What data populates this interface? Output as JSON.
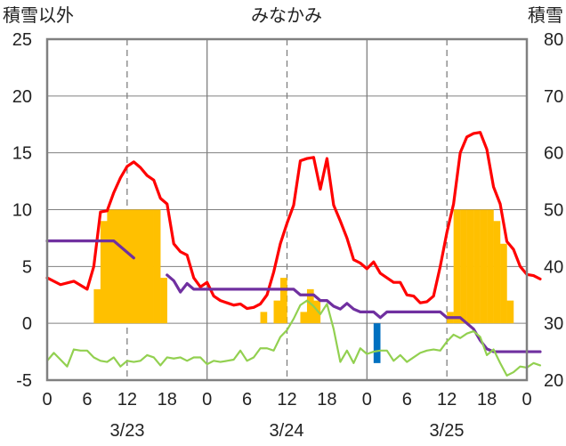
{
  "chart_data": {
    "type": "combo",
    "title": "みなかみ",
    "left_axis_label": "積雪以外",
    "right_axis_label": "積雪",
    "left_ylim": [
      -5,
      25
    ],
    "left_ticks": [
      "25",
      "20",
      "15",
      "10",
      "5",
      "0",
      "-5"
    ],
    "right_ylim": [
      20,
      80
    ],
    "right_ticks": [
      "80",
      "70",
      "60",
      "50",
      "40",
      "30",
      "20"
    ],
    "x_hour_ticks": [
      "0",
      "6",
      "12",
      "18",
      "0",
      "6",
      "12",
      "18",
      "0",
      "6",
      "12",
      "18",
      "0"
    ],
    "dates": [
      "3/23",
      "3/24",
      "3/25"
    ],
    "colors": {
      "temperature": "#ff0000",
      "snow_depth": "#7030a0",
      "sunshine": "#ffc000",
      "precipitation": "#0070c0",
      "wind": "#92d050",
      "frame": "#808080",
      "grid": "#808080"
    },
    "series": [
      {
        "key": "temperature",
        "axis": "left",
        "style": "line",
        "points": [
          [
            0,
            4.0
          ],
          [
            2,
            3.4
          ],
          [
            4,
            3.7
          ],
          [
            6,
            3.0
          ],
          [
            7,
            5.0
          ],
          [
            8,
            9.8
          ],
          [
            9,
            9.9
          ],
          [
            10,
            11.5
          ],
          [
            11,
            12.8
          ],
          [
            12,
            13.8
          ],
          [
            13,
            14.2
          ],
          [
            14,
            13.7
          ],
          [
            15,
            13.0
          ],
          [
            16,
            12.6
          ],
          [
            17,
            11.0
          ],
          [
            18,
            10.5
          ],
          [
            19,
            7.0
          ],
          [
            20,
            6.3
          ],
          [
            21,
            6.0
          ],
          [
            22,
            4.0
          ],
          [
            23,
            3.2
          ],
          [
            24,
            3.6
          ],
          [
            25,
            2.4
          ],
          [
            26,
            2.0
          ],
          [
            27,
            1.8
          ],
          [
            28,
            1.6
          ],
          [
            29,
            1.7
          ],
          [
            30,
            1.3
          ],
          [
            31,
            1.4
          ],
          [
            32,
            1.7
          ],
          [
            33,
            2.5
          ],
          [
            34,
            4.5
          ],
          [
            35,
            7.0
          ],
          [
            36,
            8.8
          ],
          [
            37,
            10.4
          ],
          [
            38,
            14.3
          ],
          [
            39,
            14.5
          ],
          [
            40,
            14.6
          ],
          [
            41,
            11.8
          ],
          [
            42,
            14.5
          ],
          [
            43,
            10.4
          ],
          [
            44,
            9.0
          ],
          [
            45,
            7.5
          ],
          [
            46,
            5.6
          ],
          [
            47,
            5.3
          ],
          [
            48,
            4.8
          ],
          [
            49,
            5.4
          ],
          [
            50,
            4.4
          ],
          [
            51,
            4.0
          ],
          [
            52,
            3.6
          ],
          [
            53,
            3.6
          ],
          [
            54,
            2.5
          ],
          [
            55,
            2.4
          ],
          [
            56,
            1.8
          ],
          [
            57,
            1.9
          ],
          [
            58,
            2.4
          ],
          [
            59,
            5.0
          ],
          [
            60,
            8.0
          ],
          [
            61,
            10.5
          ],
          [
            62,
            15.0
          ],
          [
            63,
            16.4
          ],
          [
            64,
            16.7
          ],
          [
            65,
            16.8
          ],
          [
            66,
            15.3
          ],
          [
            67,
            12.0
          ],
          [
            68,
            10.5
          ],
          [
            69,
            7.2
          ],
          [
            70,
            6.5
          ],
          [
            71,
            5.0
          ],
          [
            72,
            4.3
          ],
          [
            73,
            4.2
          ],
          [
            74,
            3.9
          ]
        ]
      },
      {
        "key": "snow_depth",
        "axis": "right",
        "style": "line",
        "segments": [
          [
            [
              0,
              44.5
            ],
            [
              1,
              44.5
            ],
            [
              2,
              44.5
            ],
            [
              3,
              44.5
            ],
            [
              4,
              44.5
            ],
            [
              5,
              44.5
            ],
            [
              6,
              44.5
            ],
            [
              7,
              44.5
            ],
            [
              8,
              44.5
            ],
            [
              9,
              44.5
            ],
            [
              10,
              44.5
            ],
            [
              11,
              43.5
            ],
            [
              12,
              42.5
            ],
            [
              13,
              41.5
            ]
          ],
          [
            [
              18,
              38.5
            ],
            [
              19,
              37.5
            ],
            [
              20,
              35.5
            ],
            [
              21,
              37.0
            ],
            [
              22,
              36.0
            ],
            [
              23,
              36.0
            ],
            [
              24,
              36.0
            ],
            [
              25,
              36.0
            ],
            [
              26,
              36.0
            ],
            [
              27,
              36.0
            ],
            [
              28,
              36.0
            ],
            [
              29,
              36.0
            ],
            [
              30,
              36.0
            ],
            [
              31,
              36.0
            ],
            [
              32,
              36.0
            ],
            [
              33,
              36.0
            ],
            [
              34,
              36.0
            ],
            [
              35,
              36.0
            ],
            [
              36,
              36.0
            ],
            [
              37,
              36.0
            ],
            [
              38,
              35.0
            ],
            [
              39,
              35.0
            ],
            [
              40,
              35.0
            ],
            [
              41,
              34.0
            ],
            [
              42,
              34.0
            ],
            [
              43,
              33.0
            ],
            [
              44,
              32.5
            ],
            [
              45,
              33.5
            ],
            [
              46,
              32.5
            ],
            [
              47,
              32.0
            ],
            [
              48,
              32.0
            ],
            [
              49,
              32.0
            ],
            [
              50,
              31.0
            ],
            [
              51,
              32.0
            ],
            [
              52,
              32.0
            ],
            [
              53,
              32.0
            ],
            [
              54,
              32.0
            ],
            [
              55,
              32.0
            ],
            [
              56,
              32.0
            ],
            [
              57,
              32.0
            ],
            [
              58,
              32.0
            ],
            [
              59,
              32.0
            ],
            [
              60,
              31.0
            ],
            [
              61,
              31.0
            ],
            [
              62,
              31.0
            ],
            [
              63,
              30.0
            ],
            [
              64,
              29.0
            ],
            [
              65,
              27.0
            ],
            [
              66,
              25.5
            ],
            [
              67,
              25.0
            ],
            [
              68,
              25.0
            ],
            [
              69,
              25.0
            ],
            [
              70,
              25.0
            ],
            [
              71,
              25.0
            ],
            [
              72,
              25.0
            ],
            [
              73,
              25.0
            ],
            [
              74,
              25.0
            ]
          ]
        ]
      },
      {
        "key": "wind",
        "axis": "left",
        "style": "line",
        "points": [
          [
            0,
            -3.3
          ],
          [
            1,
            -2.6
          ],
          [
            2,
            -3.2
          ],
          [
            3,
            -3.8
          ],
          [
            4,
            -2.3
          ],
          [
            5,
            -2.4
          ],
          [
            6,
            -2.4
          ],
          [
            7,
            -3.0
          ],
          [
            8,
            -3.3
          ],
          [
            9,
            -3.4
          ],
          [
            10,
            -3.0
          ],
          [
            11,
            -3.8
          ],
          [
            12,
            -3.3
          ],
          [
            13,
            -3.4
          ],
          [
            14,
            -3.3
          ],
          [
            15,
            -2.8
          ],
          [
            16,
            -3.0
          ],
          [
            17,
            -3.7
          ],
          [
            18,
            -3.0
          ],
          [
            19,
            -3.1
          ],
          [
            20,
            -3.0
          ],
          [
            21,
            -3.3
          ],
          [
            22,
            -3.0
          ],
          [
            23,
            -3.0
          ],
          [
            24,
            -3.6
          ],
          [
            25,
            -3.3
          ],
          [
            26,
            -3.4
          ],
          [
            27,
            -3.3
          ],
          [
            28,
            -3.2
          ],
          [
            29,
            -2.4
          ],
          [
            30,
            -3.3
          ],
          [
            31,
            -3.0
          ],
          [
            32,
            -2.2
          ],
          [
            33,
            -2.2
          ],
          [
            34,
            -2.4
          ],
          [
            35,
            -1.2
          ],
          [
            36,
            -0.6
          ],
          [
            37,
            0.4
          ],
          [
            38,
            1.6
          ],
          [
            39,
            2.0
          ],
          [
            40,
            1.5
          ],
          [
            41,
            0.8
          ],
          [
            42,
            1.7
          ],
          [
            43,
            -0.5
          ],
          [
            44,
            -3.4
          ],
          [
            45,
            -2.4
          ],
          [
            46,
            -3.5
          ],
          [
            47,
            -2.2
          ],
          [
            48,
            -2.7
          ],
          [
            49,
            -2.5
          ],
          [
            50,
            -2.4
          ],
          [
            51,
            -2.4
          ],
          [
            52,
            -3.3
          ],
          [
            53,
            -2.8
          ],
          [
            54,
            -3.4
          ],
          [
            55,
            -3.0
          ],
          [
            56,
            -2.6
          ],
          [
            57,
            -2.4
          ],
          [
            58,
            -2.3
          ],
          [
            59,
            -2.4
          ],
          [
            60,
            -1.6
          ],
          [
            61,
            -1.0
          ],
          [
            62,
            -1.3
          ],
          [
            63,
            -0.9
          ],
          [
            64,
            -0.7
          ],
          [
            65,
            -1.2
          ],
          [
            66,
            -2.8
          ],
          [
            67,
            -2.3
          ],
          [
            68,
            -3.5
          ],
          [
            69,
            -4.6
          ],
          [
            70,
            -4.3
          ],
          [
            71,
            -3.8
          ],
          [
            72,
            -3.9
          ],
          [
            73,
            -3.5
          ],
          [
            74,
            -3.7
          ]
        ]
      },
      {
        "key": "sunshine",
        "axis": "left",
        "style": "bar",
        "bars": [
          [
            7,
            3
          ],
          [
            8,
            9
          ],
          [
            9,
            10
          ],
          [
            10,
            10
          ],
          [
            11,
            10
          ],
          [
            12,
            10
          ],
          [
            13,
            10
          ],
          [
            14,
            10
          ],
          [
            15,
            10
          ],
          [
            16,
            10
          ],
          [
            17,
            4
          ],
          [
            32,
            1
          ],
          [
            34,
            2
          ],
          [
            35,
            4
          ],
          [
            38,
            1
          ],
          [
            39,
            3
          ],
          [
            40,
            2
          ],
          [
            60,
            1
          ],
          [
            61,
            10
          ],
          [
            62,
            10
          ],
          [
            63,
            10
          ],
          [
            64,
            10
          ],
          [
            65,
            10
          ],
          [
            66,
            10
          ],
          [
            67,
            9
          ],
          [
            68,
            7
          ],
          [
            69,
            2
          ]
        ]
      },
      {
        "key": "precipitation",
        "axis": "left",
        "style": "bar",
        "bars": [
          [
            49,
            -3.5
          ]
        ]
      }
    ]
  }
}
